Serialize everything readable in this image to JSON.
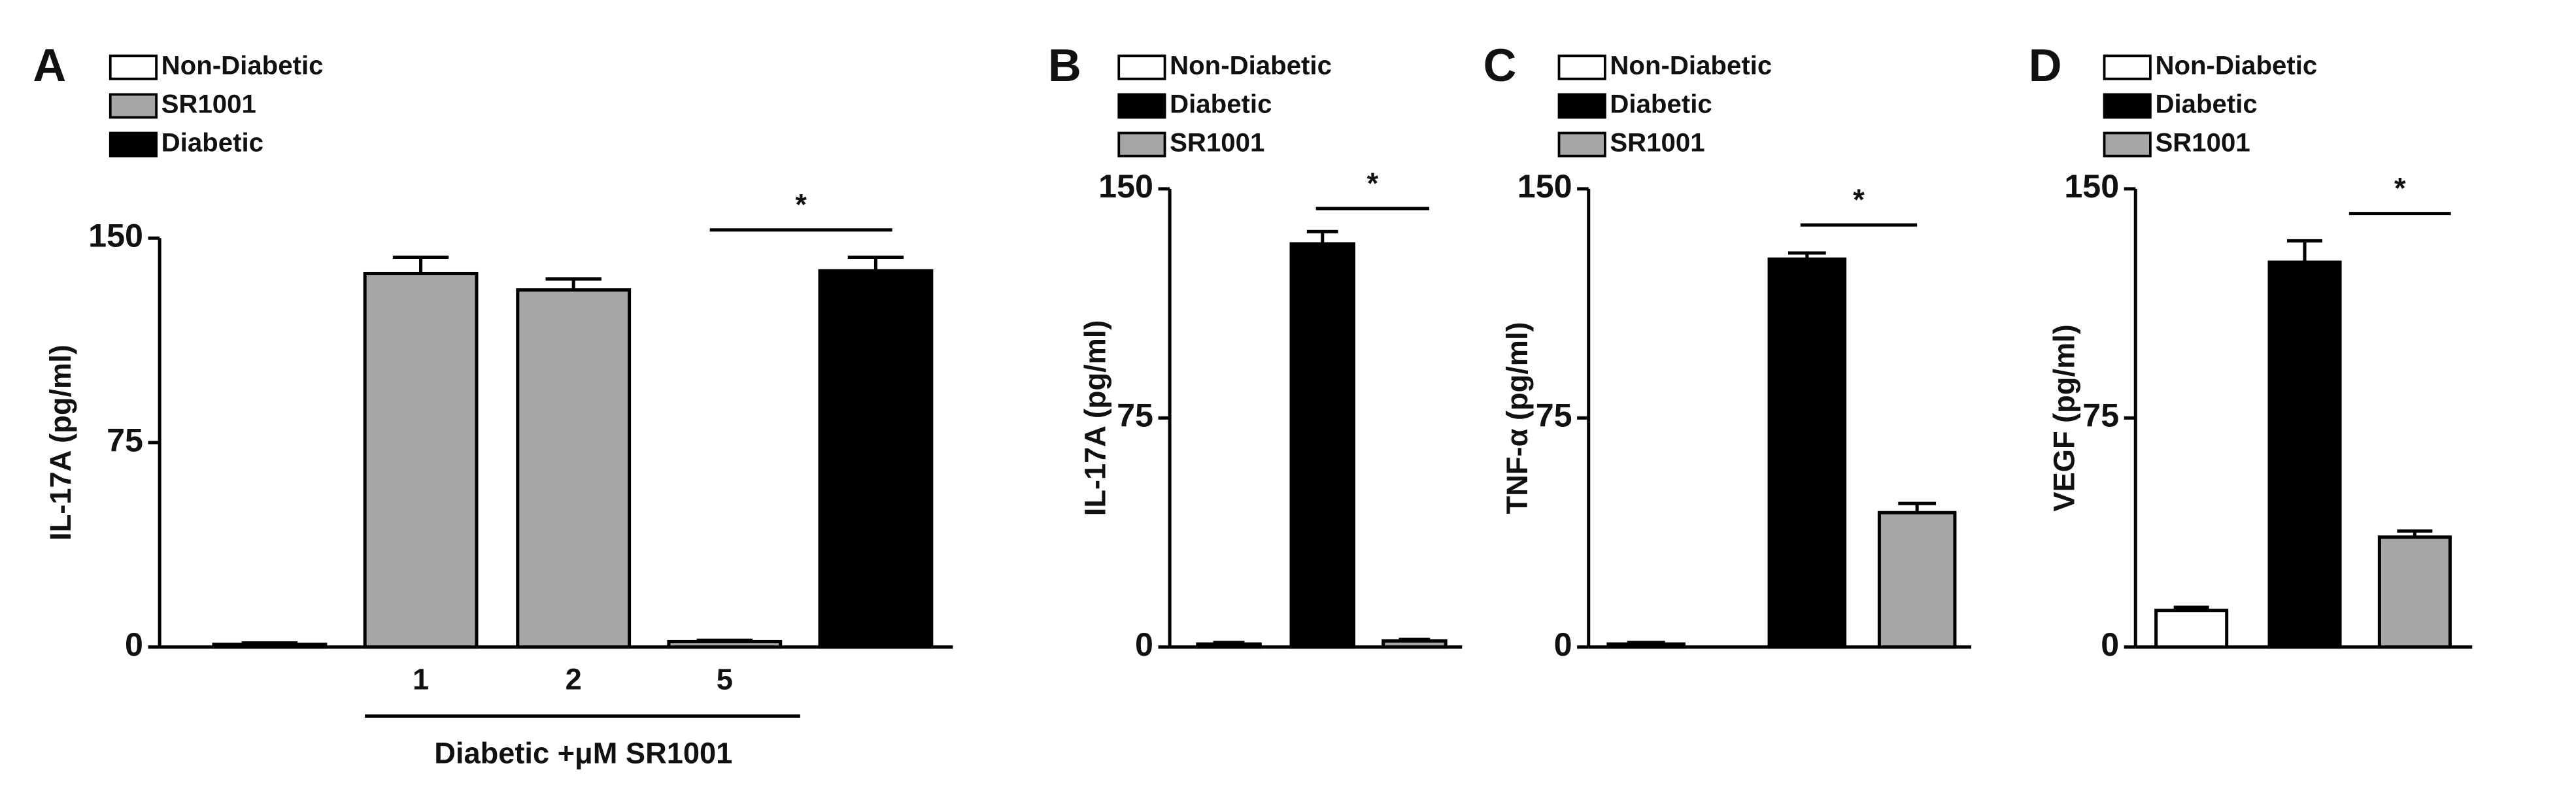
{
  "chart_data": [
    {
      "type": "bar",
      "panel": "A",
      "ylabel": "IL-17A (pg/ml)",
      "legend": [
        {
          "name": "Non-Diabetic",
          "color": "#ffffff"
        },
        {
          "name": "SR1001",
          "color": "#a6a6a6"
        },
        {
          "name": "Diabetic",
          "color": "#000000"
        }
      ],
      "categories": [
        null,
        "1",
        "2",
        "5",
        null
      ],
      "values": [
        1,
        137,
        131,
        2,
        138
      ],
      "errors": [
        0.5,
        6,
        4,
        0.5,
        5
      ],
      "colors": [
        "#ffffff",
        "#a6a6a6",
        "#a6a6a6",
        "#a6a6a6",
        "#000000"
      ],
      "group_label": "Diabetic +μM SR1001",
      "annotation": "*",
      "ylim": [
        0,
        150
      ],
      "yticks": [
        0,
        75,
        150
      ]
    },
    {
      "type": "bar",
      "panel": "B",
      "ylabel": "IL-17A (pg/ml)",
      "legend": [
        {
          "name": "Non-Diabetic",
          "color": "#ffffff"
        },
        {
          "name": "Diabetic",
          "color": "#000000"
        },
        {
          "name": "SR1001",
          "color": "#a6a6a6"
        }
      ],
      "values": [
        1,
        132,
        2
      ],
      "errors": [
        0.5,
        4,
        0.5
      ],
      "colors": [
        "#ffffff",
        "#000000",
        "#a6a6a6"
      ],
      "annotation": "*",
      "ylim": [
        0,
        150
      ],
      "yticks": [
        0,
        75,
        150
      ]
    },
    {
      "type": "bar",
      "panel": "C",
      "ylabel": "TNF-α (pg/ml)",
      "legend": [
        {
          "name": "Non-Diabetic",
          "color": "#ffffff"
        },
        {
          "name": "Diabetic",
          "color": "#000000"
        },
        {
          "name": "SR1001",
          "color": "#a6a6a6"
        }
      ],
      "values": [
        1,
        127,
        44
      ],
      "errors": [
        0.5,
        2,
        3
      ],
      "colors": [
        "#ffffff",
        "#000000",
        "#a6a6a6"
      ],
      "annotation": "*",
      "ylim": [
        0,
        150
      ],
      "yticks": [
        0,
        75,
        150
      ]
    },
    {
      "type": "bar",
      "panel": "D",
      "ylabel": "VEGF (pg/ml)",
      "legend": [
        {
          "name": "Non-Diabetic",
          "color": "#ffffff"
        },
        {
          "name": "Diabetic",
          "color": "#000000"
        },
        {
          "name": "SR1001",
          "color": "#a6a6a6"
        }
      ],
      "values": [
        12,
        126,
        36
      ],
      "errors": [
        1,
        7,
        2
      ],
      "colors": [
        "#ffffff",
        "#000000",
        "#a6a6a6"
      ],
      "annotation": "*",
      "ylim": [
        0,
        150
      ],
      "yticks": [
        0,
        75,
        150
      ]
    }
  ]
}
